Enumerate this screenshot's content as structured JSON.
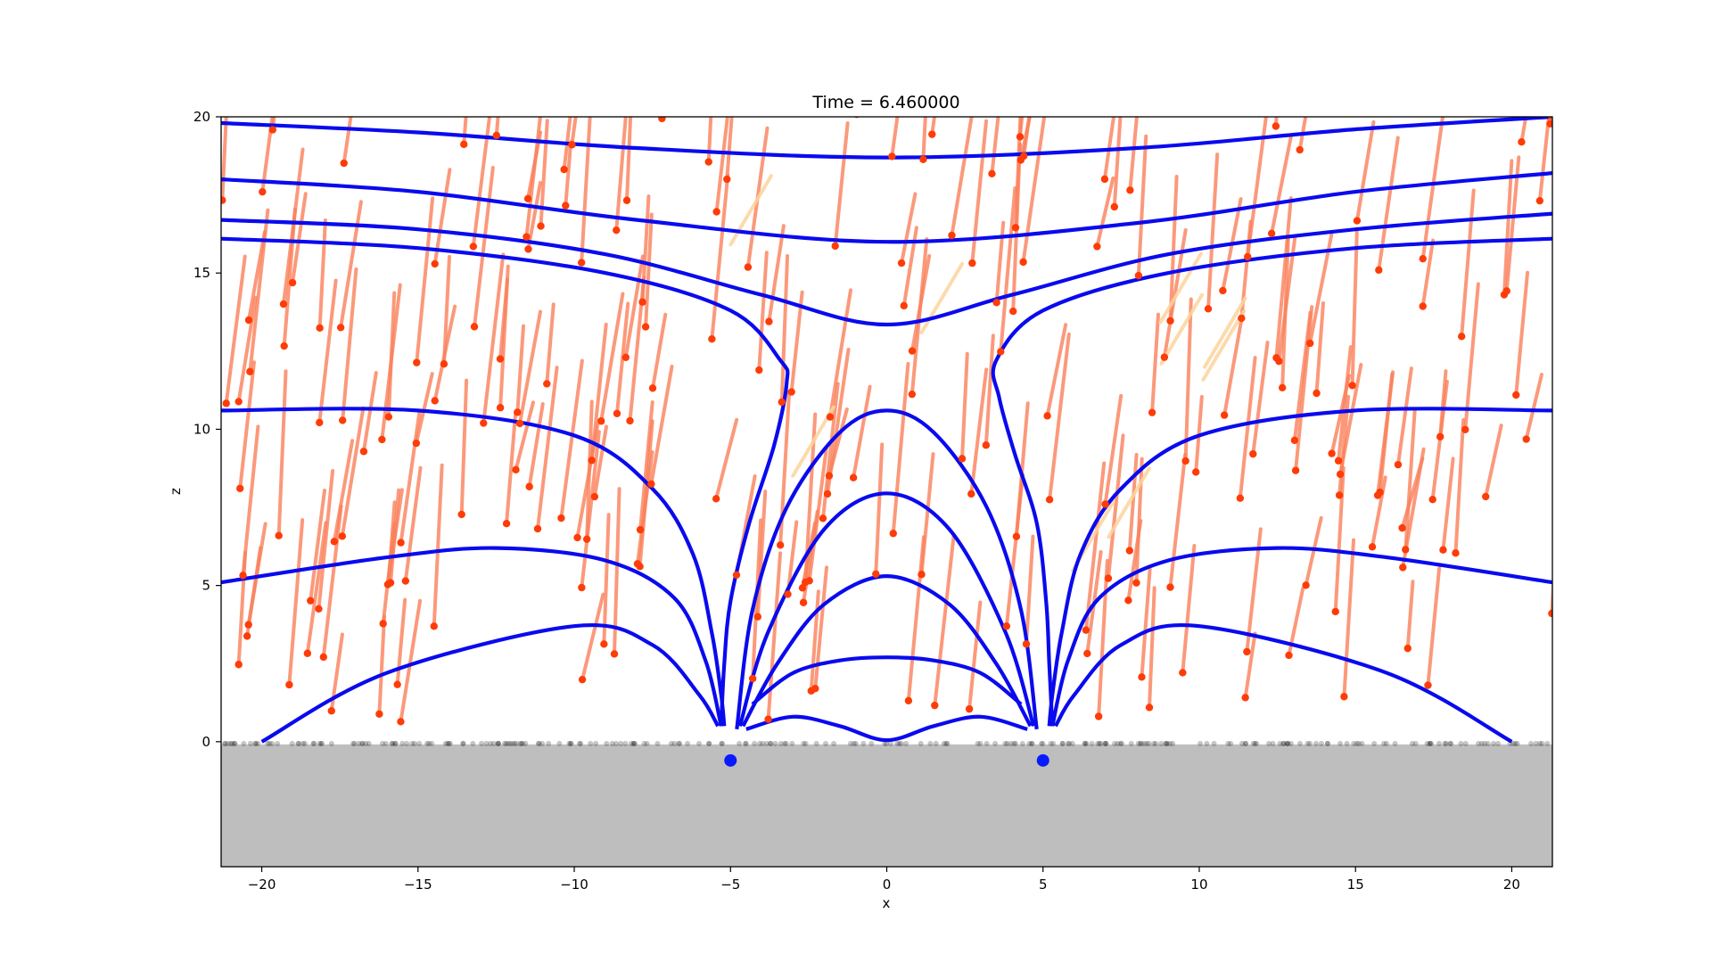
{
  "chart_data": {
    "type": "line",
    "title": "Time = 6.460000",
    "xlabel": "x",
    "ylabel": "z",
    "xlim": [
      -21.3,
      21.3
    ],
    "ylim": [
      -4,
      20
    ],
    "x_ticks": [
      -20,
      -15,
      -10,
      -5,
      0,
      5,
      10,
      15,
      20
    ],
    "x_tick_labels": [
      "−20",
      "−15",
      "−10",
      "−5",
      "0",
      "5",
      "10",
      "15",
      "20"
    ],
    "y_ticks": [
      0,
      5,
      10,
      15,
      20
    ],
    "y_tick_labels": [
      "0",
      "5",
      "10",
      "15",
      "20"
    ],
    "grid": false,
    "legend": "none",
    "ground_level": 0,
    "colors": {
      "field_lines": "#0a0aee",
      "trail": "#fa7f5a",
      "trail_faint": "#fbd49e",
      "particle": "#fe3c07",
      "ground": "#bebebe",
      "source": "#0a1aff"
    },
    "sources": [
      {
        "x": -5,
        "z": -0.6
      },
      {
        "x": 5,
        "z": -0.6
      }
    ],
    "field_lines": [
      {
        "points": [
          [
            -21.3,
            19.8
          ],
          [
            -15,
            19.5
          ],
          [
            -8,
            19.0
          ],
          [
            0,
            18.7
          ],
          [
            8,
            19.0
          ],
          [
            15,
            19.6
          ],
          [
            21.3,
            20.0
          ]
        ]
      },
      {
        "points": [
          [
            -21.3,
            18.0
          ],
          [
            -15,
            17.6
          ],
          [
            -8,
            16.7
          ],
          [
            0,
            16.0
          ],
          [
            8,
            16.6
          ],
          [
            15,
            17.6
          ],
          [
            21.3,
            18.2
          ]
        ]
      },
      {
        "points": [
          [
            -21.3,
            16.7
          ],
          [
            -15,
            16.4
          ],
          [
            -9,
            15.6
          ],
          [
            -4,
            14.3
          ],
          [
            0,
            13.35
          ],
          [
            4,
            14.3
          ],
          [
            9,
            15.6
          ],
          [
            15,
            16.4
          ],
          [
            21.3,
            16.9
          ]
        ]
      },
      {
        "points": [
          [
            -21.3,
            16.1
          ],
          [
            -15,
            15.8
          ],
          [
            -9,
            15.0
          ],
          [
            -5,
            13.8
          ],
          [
            -3.4,
            12.2
          ],
          [
            -3.2,
            11.5
          ],
          [
            -3.6,
            9.5
          ],
          [
            -4.4,
            7.0
          ],
          [
            -5.0,
            4.5
          ],
          [
            -5.2,
            2.5
          ],
          [
            -5.3,
            0.5
          ]
        ]
      },
      {
        "points": [
          [
            21.3,
            16.1
          ],
          [
            15,
            15.8
          ],
          [
            9,
            15.0
          ],
          [
            5,
            13.8
          ],
          [
            3.5,
            12.2
          ],
          [
            3.6,
            11.0
          ],
          [
            4.1,
            9.2
          ],
          [
            4.8,
            7.0
          ],
          [
            5.1,
            4.5
          ],
          [
            5.2,
            2.5
          ],
          [
            5.3,
            0.5
          ]
        ]
      },
      {
        "points": [
          [
            -21.3,
            10.6
          ],
          [
            -15,
            10.6
          ],
          [
            -10,
            9.8
          ],
          [
            -7.5,
            8.1
          ],
          [
            -6.2,
            6.0
          ],
          [
            -5.6,
            3.5
          ],
          [
            -5.3,
            1.5
          ],
          [
            -5.2,
            0.5
          ]
        ]
      },
      {
        "points": [
          [
            21.3,
            10.6
          ],
          [
            15,
            10.6
          ],
          [
            10,
            9.8
          ],
          [
            7.5,
            8.1
          ],
          [
            6.2,
            6.0
          ],
          [
            5.6,
            3.5
          ],
          [
            5.3,
            1.5
          ],
          [
            5.2,
            0.5
          ]
        ]
      },
      {
        "points": [
          [
            -21.3,
            5.1
          ],
          [
            -16,
            5.9
          ],
          [
            -12.5,
            6.2
          ],
          [
            -9,
            5.8
          ],
          [
            -6.8,
            4.6
          ],
          [
            -5.8,
            2.6
          ],
          [
            -5.3,
            0.5
          ]
        ]
      },
      {
        "points": [
          [
            21.3,
            5.1
          ],
          [
            16,
            5.9
          ],
          [
            12.5,
            6.2
          ],
          [
            9,
            5.8
          ],
          [
            6.8,
            4.6
          ],
          [
            5.8,
            2.6
          ],
          [
            5.3,
            0.5
          ]
        ]
      },
      {
        "points": [
          [
            -20.0,
            0.0
          ],
          [
            -16,
            2.2
          ],
          [
            -10,
            3.7
          ],
          [
            -7.5,
            3.1
          ],
          [
            -6.0,
            1.5
          ],
          [
            -5.4,
            0.5
          ]
        ]
      },
      {
        "points": [
          [
            20.0,
            0.0
          ],
          [
            16,
            2.2
          ],
          [
            10,
            3.7
          ],
          [
            7.5,
            3.1
          ],
          [
            6.0,
            1.5
          ],
          [
            5.4,
            0.5
          ]
        ]
      },
      {
        "points": [
          [
            -4.8,
            0.4
          ],
          [
            -4.3,
            4.2
          ],
          [
            -3.2,
            7.5
          ],
          [
            -1.5,
            9.9
          ],
          [
            0,
            10.6
          ],
          [
            1.5,
            9.9
          ],
          [
            3.2,
            7.5
          ],
          [
            4.3,
            4.2
          ],
          [
            4.8,
            0.4
          ]
        ]
      },
      {
        "points": [
          [
            -4.7,
            0.5
          ],
          [
            -3.8,
            3.5
          ],
          [
            -2.0,
            6.8
          ],
          [
            0,
            7.95
          ],
          [
            2.0,
            6.8
          ],
          [
            3.8,
            3.5
          ],
          [
            4.7,
            0.5
          ]
        ]
      },
      {
        "points": [
          [
            -4.6,
            0.5
          ],
          [
            -3.5,
            2.5
          ],
          [
            -2.0,
            4.4
          ],
          [
            0,
            5.3
          ],
          [
            2.0,
            4.4
          ],
          [
            3.5,
            2.5
          ],
          [
            4.6,
            0.5
          ]
        ]
      },
      {
        "points": [
          [
            -4.3,
            1.2
          ],
          [
            -3,
            2.2
          ],
          [
            -1.5,
            2.6
          ],
          [
            0,
            2.7
          ],
          [
            1.5,
            2.6
          ],
          [
            3,
            2.2
          ],
          [
            4.3,
            1.2
          ]
        ]
      },
      {
        "points": [
          [
            -4.5,
            0.4
          ],
          [
            -3.0,
            0.8
          ],
          [
            -1.5,
            0.5
          ],
          [
            0,
            0.05
          ],
          [
            1.5,
            0.5
          ],
          [
            3.0,
            0.8
          ],
          [
            4.5,
            0.4
          ]
        ]
      }
    ]
  }
}
